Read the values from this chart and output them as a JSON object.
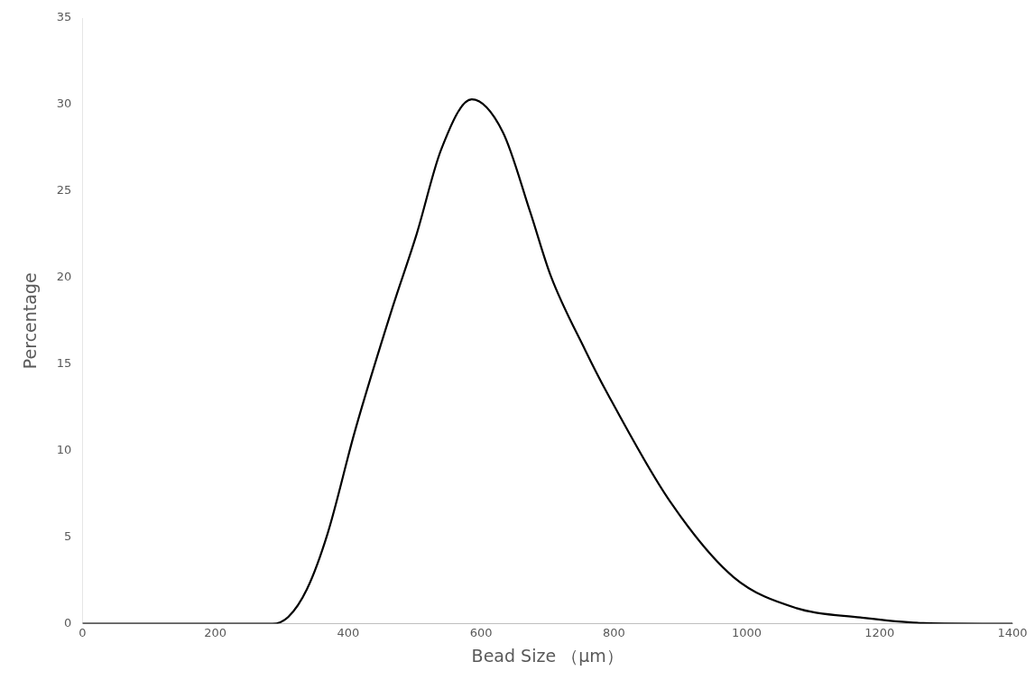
{
  "chart_data": {
    "type": "line",
    "xlabel": "Bead Size （μm）",
    "ylabel": "Percentage",
    "xlim": [
      0,
      1400
    ],
    "xticks": [
      0,
      200,
      400,
      600,
      800,
      1000,
      1200,
      1400
    ],
    "ylim": [
      0,
      35
    ],
    "yticks": [
      0,
      5,
      10,
      15,
      20,
      25,
      30,
      35
    ],
    "grid": false,
    "legend": false,
    "marker": "none",
    "line_style": "solid",
    "series": [
      {
        "color": "#000000",
        "x": [
          0,
          100,
          200,
          250,
          286,
          310,
          338,
          369,
          410,
          467,
          503,
          540,
          586,
          633,
          674,
          705,
          757,
          789,
          884,
          980,
          1075,
          1171,
          1266,
          1400
        ],
        "values": [
          0,
          0,
          0,
          0,
          0,
          0.4,
          2.0,
          5.2,
          11.1,
          18.3,
          22.5,
          27.4,
          30.3,
          28.4,
          23.8,
          20.1,
          15.8,
          13.4,
          7.1,
          2.7,
          0.9,
          0.36,
          0.04,
          0
        ]
      }
    ]
  }
}
